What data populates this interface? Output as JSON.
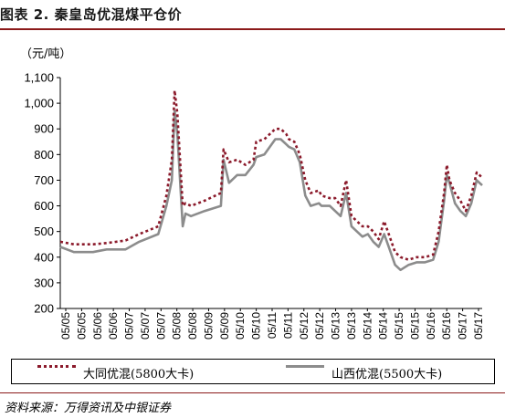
{
  "figure": {
    "title": "图表 2. 秦皇岛优混煤平仓价",
    "unit": "（元/吨）",
    "source": "资料来源：万得资讯及中银证券"
  },
  "legend": {
    "series_a_label": "大同优混(5800大卡)",
    "series_b_label": "山西优混(5500大卡)"
  },
  "colors": {
    "series_a": "#8b1a2b",
    "series_b": "#8c8c8c",
    "accent": "#8b1a1a"
  },
  "chart_data": {
    "type": "line",
    "ylim": [
      200,
      1100
    ],
    "yticks": [
      200,
      300,
      400,
      500,
      600,
      700,
      800,
      900,
      1000,
      1100
    ],
    "ytick_labels": [
      "200",
      "300",
      "400",
      "500",
      "600",
      "700",
      "800",
      "900",
      "1,000",
      "1,100"
    ],
    "x_tick_labels": [
      "05/05",
      "05/05",
      "05/06",
      "05/06",
      "05/07",
      "05/07",
      "05/07",
      "05/08",
      "05/08",
      "05/09",
      "05/09",
      "05/10",
      "05/10",
      "05/11",
      "05/11",
      "05/12",
      "05/12",
      "05/13",
      "05/13",
      "05/14",
      "05/14",
      "05/15",
      "05/15",
      "05/16",
      "05/16",
      "05/17",
      "05/17"
    ],
    "x_start": "2005-01",
    "x_end": "2017-12",
    "grid": false,
    "legend_position": "bottom",
    "series": [
      {
        "name": "大同优混(5800大卡)",
        "style": "dotted",
        "x": [
          "2005-01",
          "2005-06",
          "2006-01",
          "2006-06",
          "2007-01",
          "2007-06",
          "2008-01",
          "2008-04",
          "2008-06",
          "2008-07",
          "2008-08",
          "2008-10",
          "2008-11",
          "2009-01",
          "2009-06",
          "2009-12",
          "2010-01",
          "2010-03",
          "2010-06",
          "2010-09",
          "2010-12",
          "2011-01",
          "2011-04",
          "2011-06",
          "2011-08",
          "2011-10",
          "2011-12",
          "2012-01",
          "2012-03",
          "2012-05",
          "2012-07",
          "2012-09",
          "2012-12",
          "2013-01",
          "2013-04",
          "2013-06",
          "2013-08",
          "2013-10",
          "2013-12",
          "2014-02",
          "2014-04",
          "2014-06",
          "2014-08",
          "2014-10",
          "2014-12",
          "2015-02",
          "2015-04",
          "2015-06",
          "2015-09",
          "2015-12",
          "2016-03",
          "2016-06",
          "2016-08",
          "2016-10",
          "2016-11",
          "2016-12",
          "2017-02",
          "2017-04",
          "2017-06",
          "2017-08",
          "2017-10",
          "2017-12"
        ],
        "values": [
          460,
          450,
          450,
          455,
          465,
          490,
          520,
          640,
          780,
          1050,
          960,
          600,
          610,
          600,
          620,
          650,
          820,
          770,
          780,
          760,
          780,
          850,
          860,
          880,
          900,
          900,
          880,
          860,
          850,
          800,
          700,
          650,
          660,
          640,
          630,
          630,
          600,
          700,
          560,
          540,
          520,
          520,
          500,
          470,
          540,
          480,
          420,
          400,
          390,
          400,
          400,
          410,
          500,
          650,
          760,
          700,
          650,
          620,
          580,
          640,
          730,
          710
        ]
      },
      {
        "name": "山西优混(5500大卡)",
        "style": "solid",
        "x": [
          "2005-01",
          "2005-06",
          "2006-01",
          "2006-06",
          "2007-01",
          "2007-06",
          "2008-01",
          "2008-04",
          "2008-06",
          "2008-07",
          "2008-08",
          "2008-10",
          "2008-11",
          "2009-01",
          "2009-06",
          "2009-12",
          "2010-01",
          "2010-03",
          "2010-06",
          "2010-09",
          "2010-12",
          "2011-01",
          "2011-04",
          "2011-06",
          "2011-08",
          "2011-10",
          "2011-12",
          "2012-01",
          "2012-03",
          "2012-05",
          "2012-07",
          "2012-09",
          "2012-12",
          "2013-01",
          "2013-04",
          "2013-06",
          "2013-08",
          "2013-10",
          "2013-12",
          "2014-02",
          "2014-04",
          "2014-06",
          "2014-08",
          "2014-10",
          "2014-12",
          "2015-02",
          "2015-04",
          "2015-06",
          "2015-09",
          "2015-12",
          "2016-03",
          "2016-06",
          "2016-08",
          "2016-10",
          "2016-11",
          "2016-12",
          "2017-02",
          "2017-04",
          "2017-06",
          "2017-08",
          "2017-10",
          "2017-12"
        ],
        "values": [
          440,
          420,
          420,
          430,
          430,
          460,
          490,
          600,
          700,
          970,
          880,
          520,
          570,
          560,
          580,
          600,
          780,
          690,
          720,
          720,
          760,
          790,
          800,
          830,
          860,
          860,
          840,
          830,
          820,
          770,
          640,
          600,
          610,
          600,
          600,
          580,
          560,
          650,
          520,
          500,
          480,
          490,
          460,
          440,
          490,
          430,
          370,
          350,
          370,
          380,
          380,
          390,
          460,
          620,
          720,
          690,
          610,
          580,
          560,
          610,
          700,
          680
        ]
      }
    ]
  }
}
